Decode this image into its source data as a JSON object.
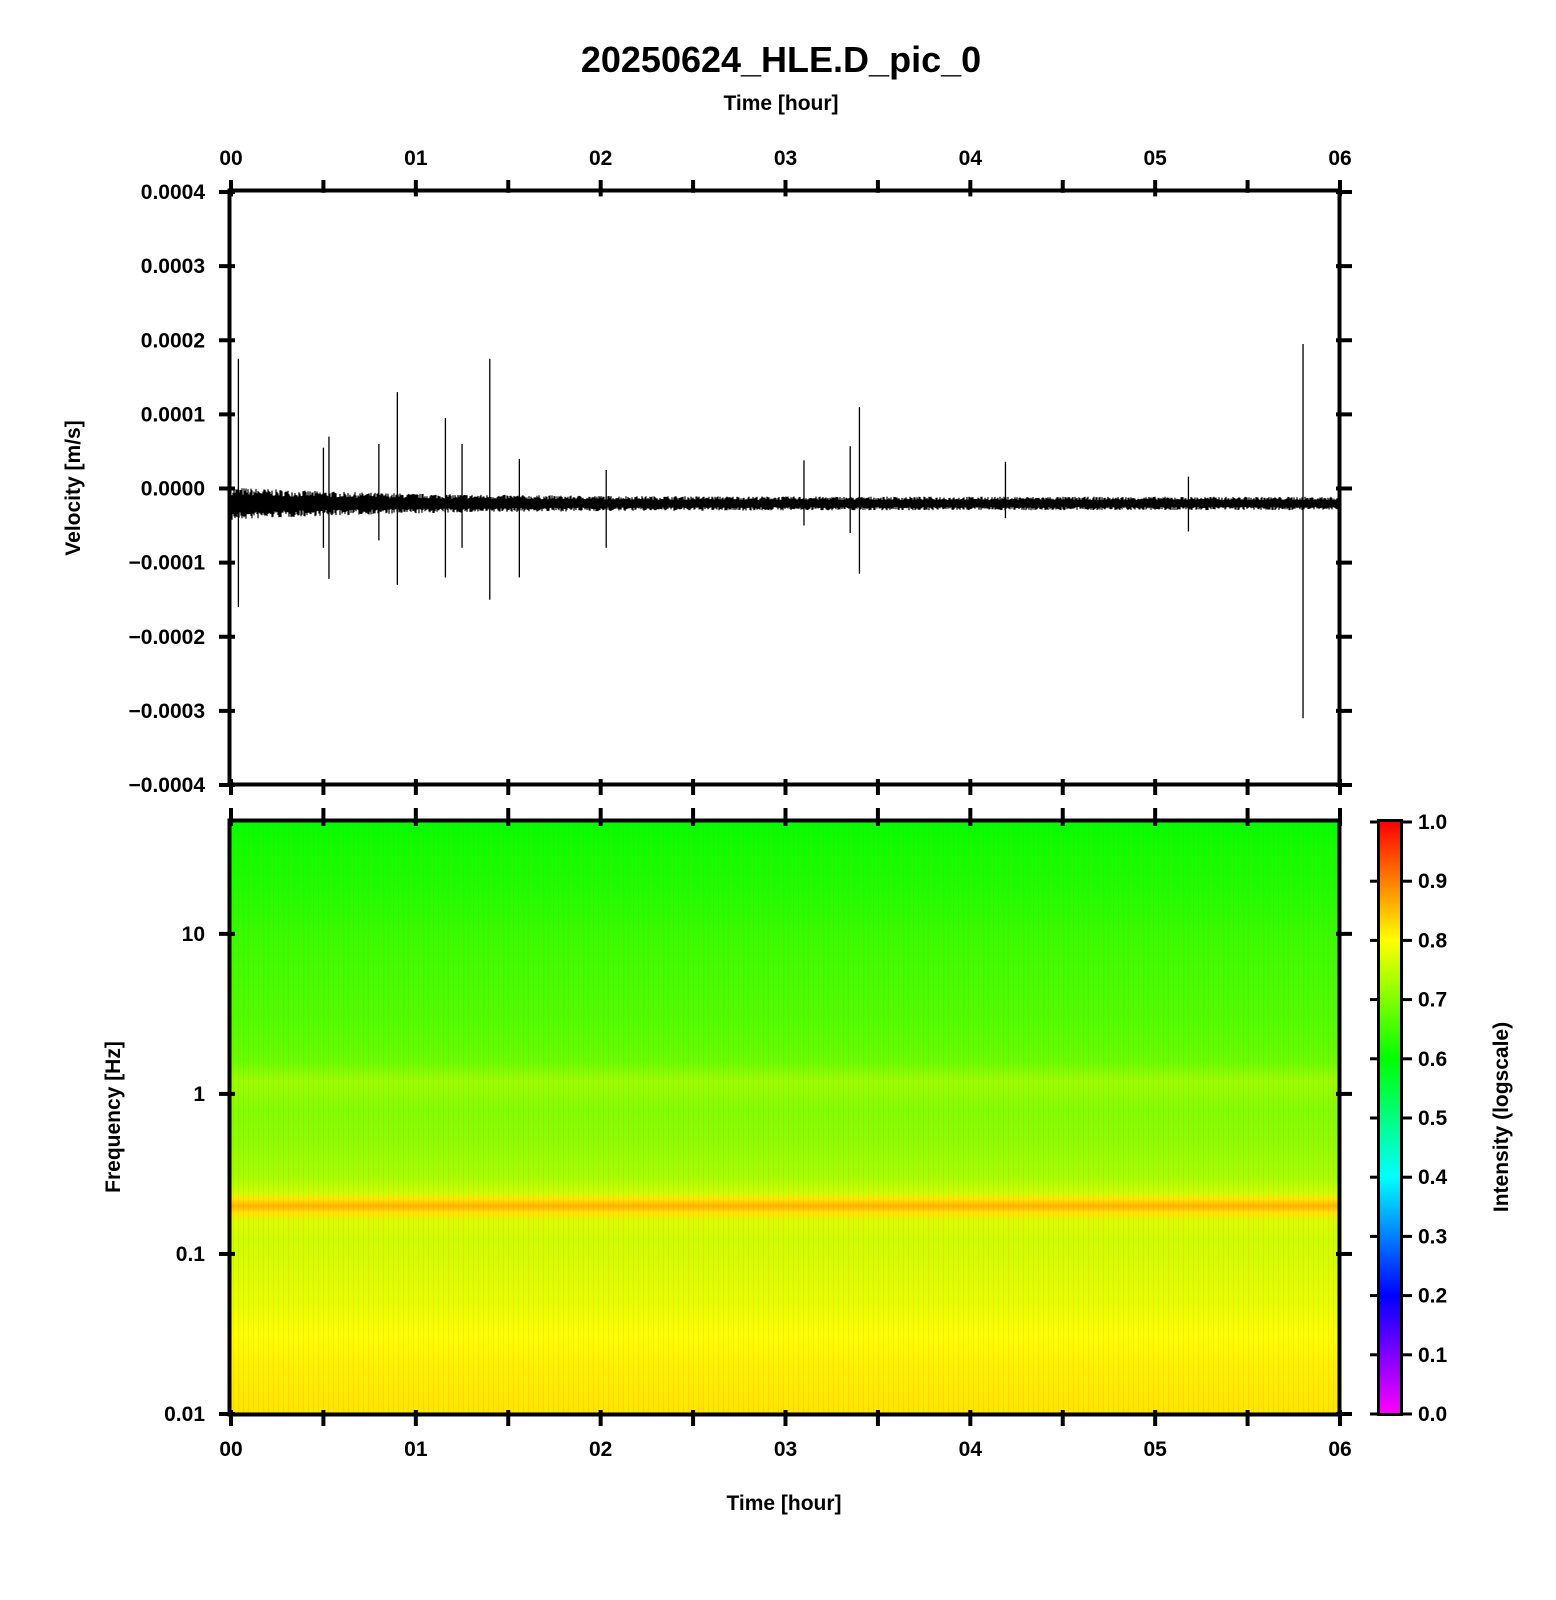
{
  "chart_data": [
    {
      "type": "line",
      "title": "20250624_HLE.D_pic_0",
      "xlabel": "Time [hour]",
      "ylabel": "Velocity [m/s]",
      "xlim": [
        0,
        6
      ],
      "ylim": [
        -0.0004,
        0.0004
      ],
      "x_tick_labels": [
        "00",
        "01",
        "02",
        "03",
        "04",
        "05",
        "06"
      ],
      "y_ticks": [
        0.0004,
        0.0003,
        0.0002,
        0.0001,
        0.0,
        -0.0001,
        -0.0002,
        -0.0003,
        -0.0004
      ],
      "y_tick_labels": [
        "0.0004",
        "0.0003",
        "0.0002",
        "0.0001",
        "0.0000",
        "−0.0001",
        "−0.0002",
        "−0.0003",
        "−0.0004"
      ],
      "baseline_offset": -2e-05,
      "noise_amplitude_early": 2e-05,
      "noise_amplitude_late": 8e-06,
      "series": [
        {
          "x": [
            0.04,
            0.5,
            0.53,
            0.8,
            0.9,
            1.16,
            1.25,
            1.4,
            1.56,
            2.03,
            3.1,
            3.35,
            3.4,
            4.19,
            5.18,
            5.8
          ],
          "y_max": [
            0.000175,
            5.5e-05,
            7e-05,
            6e-05,
            0.00013,
            9.5e-05,
            6e-05,
            0.000175,
            4e-05,
            2.5e-05,
            3.8e-05,
            5.7e-05,
            0.00011,
            3.6e-05,
            1.6e-05,
            0.000195
          ],
          "y_min": [
            -0.00016,
            -8e-05,
            -0.000122,
            -7e-05,
            -0.00013,
            -0.00012,
            -8e-05,
            -0.00015,
            -0.00012,
            -8e-05,
            -5e-05,
            -6e-05,
            -0.000115,
            -4e-05,
            -5.8e-05,
            -0.00031
          ]
        }
      ],
      "color": "#000000"
    },
    {
      "type": "heatmap",
      "xlabel": "Time [hour]",
      "ylabel": "Frequency [Hz]",
      "xlim": [
        0,
        6
      ],
      "ylim": [
        0.01,
        50
      ],
      "yscale": "log",
      "x_tick_labels": [
        "00",
        "01",
        "02",
        "03",
        "04",
        "05",
        "06"
      ],
      "y_ticks": [
        10,
        1,
        0.1,
        0.01
      ],
      "y_tick_labels": [
        "10",
        "1",
        "0.1",
        "0.01"
      ],
      "intensity_profile": {
        "freq": [
          0.01,
          0.02,
          0.03,
          0.05,
          0.08,
          0.12,
          0.16,
          0.18,
          0.2,
          0.22,
          0.24,
          0.3,
          0.5,
          0.8,
          1.2,
          1.3,
          1.6,
          3,
          6,
          10,
          20,
          35,
          50
        ],
        "intensity": [
          0.82,
          0.81,
          0.8,
          0.78,
          0.77,
          0.76,
          0.77,
          0.82,
          0.86,
          0.82,
          0.76,
          0.73,
          0.71,
          0.7,
          0.72,
          0.71,
          0.68,
          0.66,
          0.65,
          0.64,
          0.62,
          0.61,
          0.6
        ]
      },
      "colorbar": {
        "label": "Intensity (logscale)",
        "range": [
          0.0,
          1.0
        ],
        "ticks": [
          0.0,
          0.1,
          0.2,
          0.3,
          0.4,
          0.5,
          0.6,
          0.7,
          0.8,
          0.9,
          1.0
        ],
        "tick_labels": [
          "0.0",
          "0.1",
          "0.2",
          "0.3",
          "0.4",
          "0.5",
          "0.6",
          "0.7",
          "0.8",
          "0.9",
          "1.0"
        ],
        "colors": [
          "#ff00ff",
          "#0000ff",
          "#00ffff",
          "#00ff00",
          "#ffff00",
          "#ff0000"
        ]
      }
    }
  ]
}
